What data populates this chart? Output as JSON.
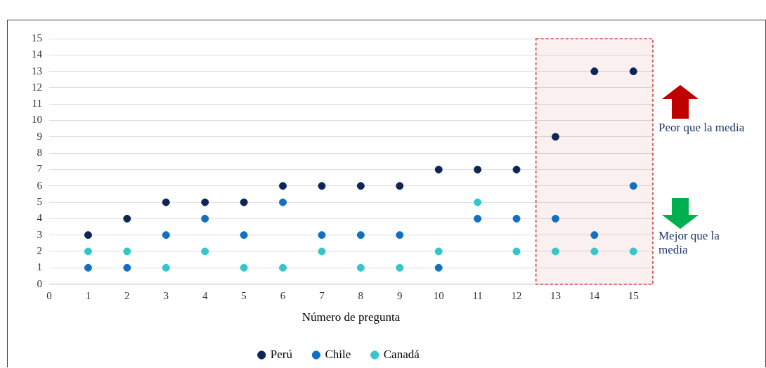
{
  "chart_data": {
    "type": "scatter",
    "xlabel": "Número de pregunta",
    "x": [
      1,
      2,
      3,
      4,
      5,
      6,
      7,
      8,
      9,
      10,
      11,
      12,
      13,
      14,
      15
    ],
    "series": [
      {
        "name": "Perú",
        "color": "#0d2557",
        "values": [
          3,
          4,
          5,
          5,
          5,
          6,
          6,
          6,
          6,
          7,
          7,
          7,
          9,
          13,
          13
        ]
      },
      {
        "name": "Chile",
        "color": "#1270c0",
        "values": [
          1,
          1,
          3,
          4,
          3,
          5,
          3,
          3,
          3,
          1,
          4,
          4,
          4,
          3,
          6
        ]
      },
      {
        "name": "Canadá",
        "color": "#33c6cc",
        "values": [
          2,
          2,
          1,
          2,
          1,
          1,
          2,
          1,
          1,
          2,
          5,
          2,
          2,
          2,
          2
        ]
      }
    ],
    "xlim": [
      0,
      15.5
    ],
    "xticks": [
      0,
      1,
      2,
      3,
      4,
      5,
      6,
      7,
      8,
      9,
      10,
      11,
      12,
      13,
      14,
      15
    ],
    "ylim": [
      0,
      15
    ],
    "yticks": [
      0,
      1,
      2,
      3,
      4,
      5,
      6,
      7,
      8,
      9,
      10,
      11,
      12,
      13,
      14,
      15
    ],
    "grid": "y",
    "legend": "bottom",
    "marker": "circle",
    "bands": [
      {
        "axis": "x",
        "from": 12.5,
        "to": 15.5,
        "color": "#c00000"
      }
    ],
    "annotations": [
      "Peor que la media",
      "Mejor que la media"
    ]
  }
}
